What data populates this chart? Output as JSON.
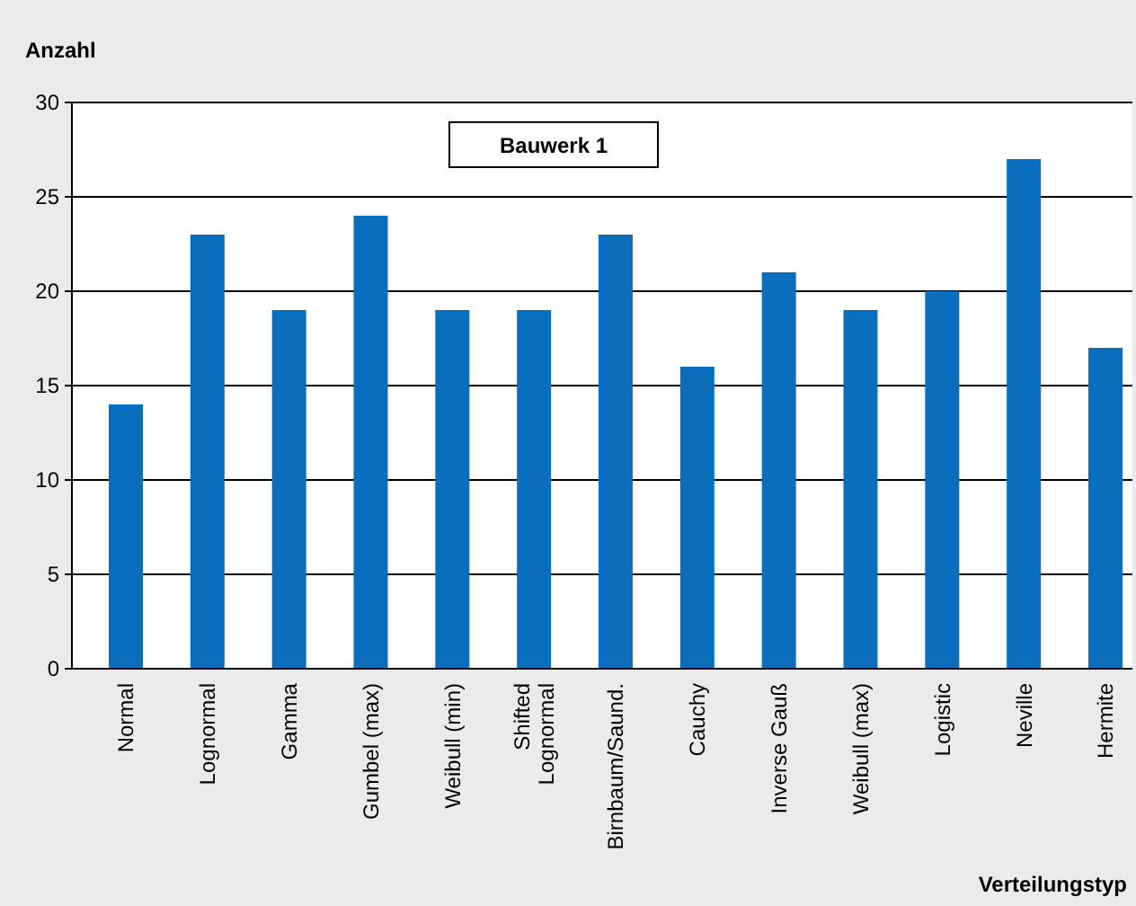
{
  "chart_data": {
    "type": "bar",
    "title": "Bauwerk 1",
    "xlabel": "Verteilungstyp",
    "ylabel": "Anzahl",
    "categories": [
      "Normal",
      "Lognormal",
      "Gamma",
      "Gumbel (max)",
      "Weibull (min)",
      "Shifted Lognormal",
      "Birnbaum/Saund.",
      "Cauchy",
      "Inverse Gauß",
      "Weibull (max)",
      "Logistic",
      "Neville",
      "Hermite"
    ],
    "values": [
      14,
      23,
      19,
      24,
      19,
      19,
      23,
      16,
      21,
      19,
      20,
      27,
      17
    ],
    "color": "#0a6ebd",
    "ylim": [
      0,
      30
    ],
    "yticks": [
      0,
      5,
      10,
      15,
      20,
      25,
      30
    ],
    "grid": "y"
  }
}
